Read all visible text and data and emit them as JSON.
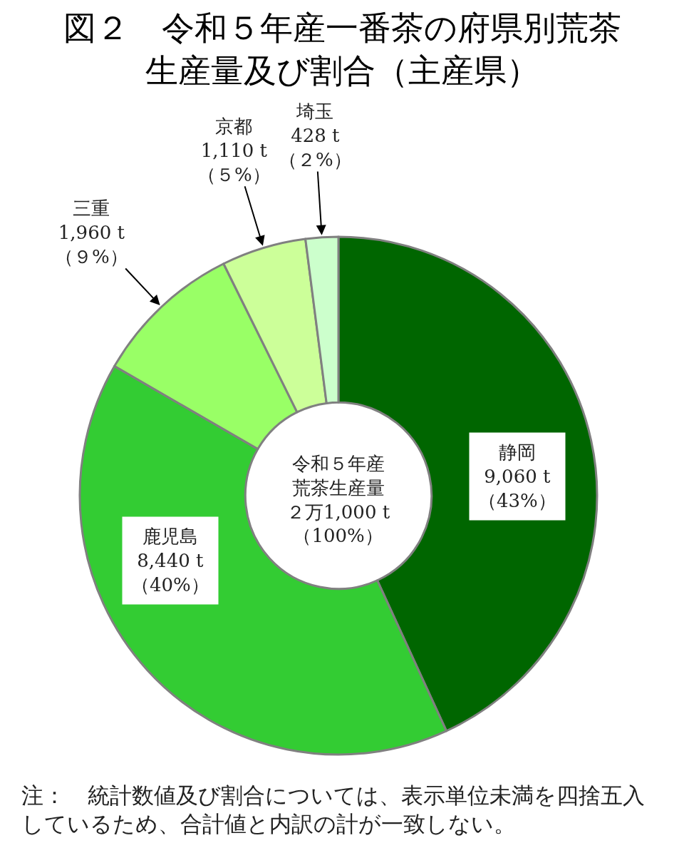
{
  "chart_data": {
    "type": "donut",
    "title": "図２　令和５年産一番茶の府県別荒茶生産量及び割合（主産県）",
    "categories": [
      "静岡",
      "鹿児島",
      "三重",
      "京都",
      "埼玉"
    ],
    "values": [
      9060,
      8440,
      1960,
      1110,
      428
    ],
    "colors": [
      "#006600",
      "#33cc33",
      "#99ff66",
      "#ccff99",
      "#ccffcc"
    ],
    "value_labels": [
      "9,060 t\n（43%）",
      "8,440 t\n（40%）",
      "1,960 t\n（９%）",
      "1,110 t\n（５%）",
      "428 t\n（２%）"
    ],
    "annotations": [
      "令和５年産荒茶生産量２万1,000 t\n（100%）",
      "注：　統計数値及び割合については、表示単位未満を四捨五入しているため、合計値と内訳の計が一致しない。"
    ]
  }
}
